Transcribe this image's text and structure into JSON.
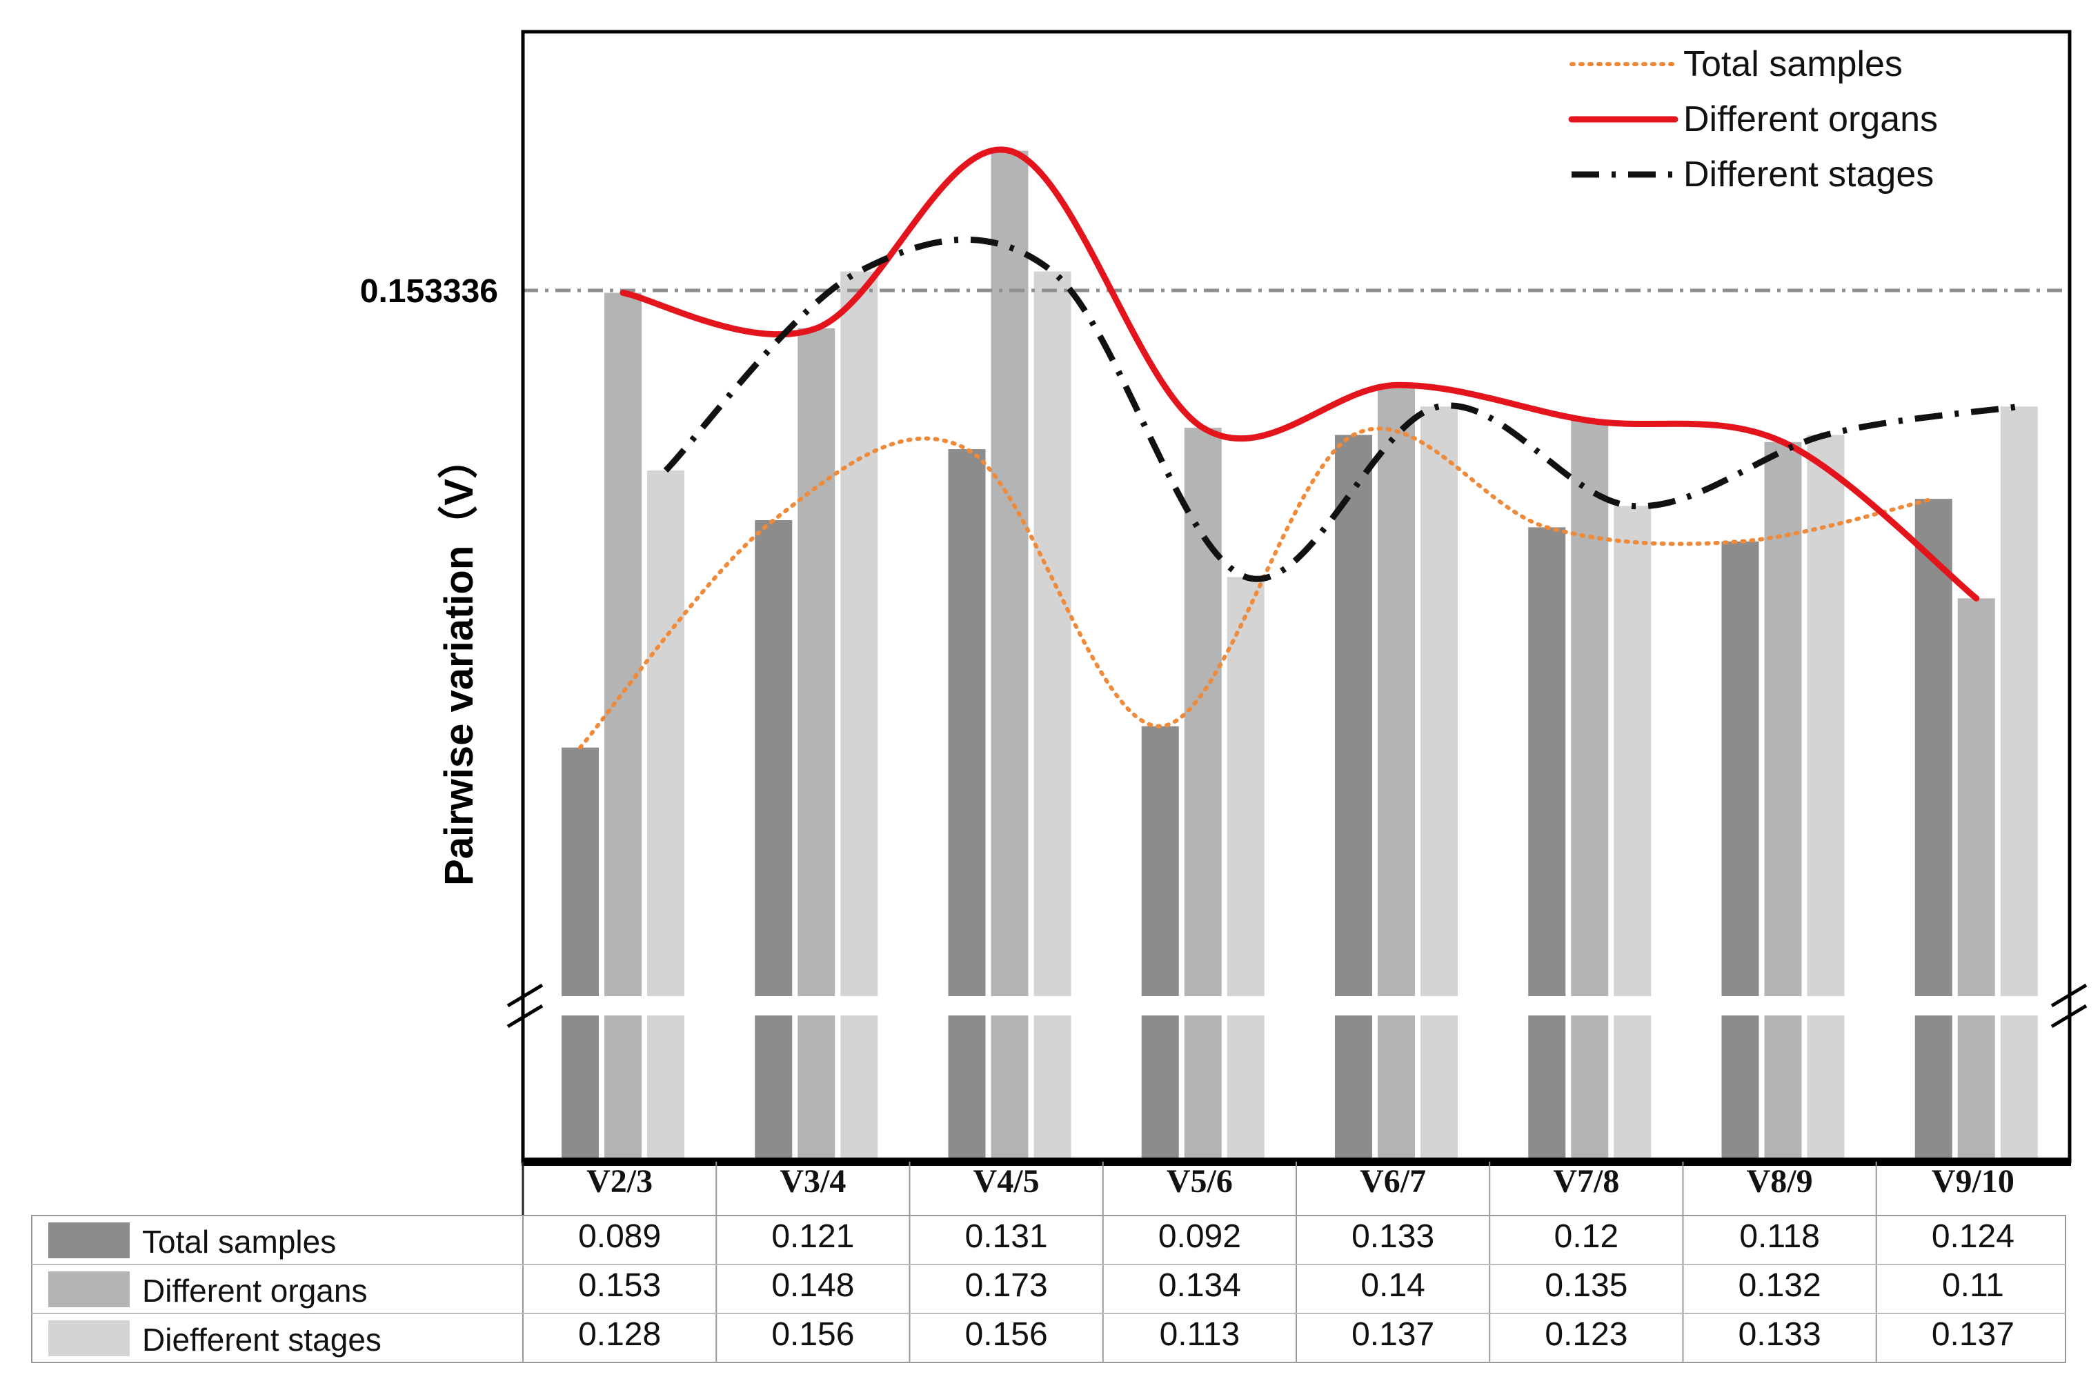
{
  "chart_data": {
    "type": "bar",
    "ylabel": "Pairwise variation（V）",
    "ylim": [
      0.075,
      0.18
    ],
    "y_axis_broken": true,
    "threshold": {
      "value": 0.153336,
      "label": "0.153336"
    },
    "categories": [
      "V2/3",
      "V3/4",
      "V4/5",
      "V5/6",
      "V6/7",
      "V7/8",
      "V8/9",
      "V9/10"
    ],
    "series": [
      {
        "name": "Total samples",
        "table_label": "Total samples",
        "values": [
          0.089,
          0.121,
          0.131,
          0.092,
          0.133,
          0.12,
          0.118,
          0.124
        ],
        "value_labels": [
          "0.089",
          "0.121",
          "0.131",
          "0.092",
          "0.133",
          "0.12",
          "0.118",
          "0.124"
        ],
        "bar_color": "#8c8c8c",
        "line_color": "#ee8a3a",
        "line_style": "dotted"
      },
      {
        "name": "Different organs",
        "table_label": "Different organs",
        "values": [
          0.153,
          0.148,
          0.173,
          0.134,
          0.14,
          0.135,
          0.132,
          0.11
        ],
        "value_labels": [
          "0.153",
          "0.148",
          "0.173",
          "0.134",
          "0.14",
          "0.135",
          "0.132",
          "0.11"
        ],
        "bar_color": "#b4b4b4",
        "line_color": "#e3141b",
        "line_style": "solid"
      },
      {
        "name": "Different stages",
        "table_label": "Diefferent stages",
        "values": [
          0.128,
          0.156,
          0.156,
          0.113,
          0.137,
          0.123,
          0.133,
          0.137
        ],
        "value_labels": [
          "0.128",
          "0.156",
          "0.156",
          "0.113",
          "0.137",
          "0.123",
          "0.133",
          "0.137"
        ],
        "bar_color": "#d4d4d4",
        "line_color": "#111111",
        "line_style": "dashdot"
      }
    ],
    "legend": {
      "position": "top-right"
    },
    "threshold_color": "#8f8f8f",
    "grid": false
  }
}
